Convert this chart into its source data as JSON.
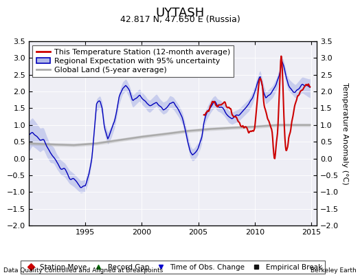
{
  "title": "UYTASH",
  "subtitle": "42.817 N, 47.650 E (Russia)",
  "ylabel": "Temperature Anomaly (°C)",
  "footer_left": "Data Quality Controlled and Aligned at Breakpoints",
  "footer_right": "Berkeley Earth",
  "xlim": [
    1990.0,
    2015.5
  ],
  "ylim": [
    -2.0,
    3.5
  ],
  "yticks": [
    -2,
    -1.5,
    -1,
    -0.5,
    0,
    0.5,
    1,
    1.5,
    2,
    2.5,
    3,
    3.5
  ],
  "xticks": [
    1995,
    2000,
    2005,
    2010,
    2015
  ],
  "red_color": "#cc0000",
  "blue_color": "#0000bb",
  "blue_fill_color": "#b0b8e8",
  "gray_color": "#aaaaaa",
  "bg_color": "#eeeef5",
  "title_fontsize": 13,
  "subtitle_fontsize": 9,
  "tick_fontsize": 8,
  "legend_fontsize": 8,
  "ylabel_fontsize": 8
}
